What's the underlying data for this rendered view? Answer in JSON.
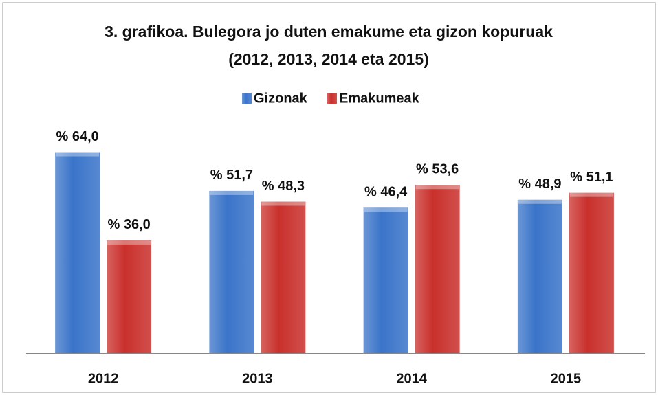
{
  "chart_data": {
    "type": "bar",
    "title": [
      "3. grafikoa. Bulegora jo duten emakume eta gizon kopuruak",
      "(2012, 2013,  2014 eta 2015)"
    ],
    "categories": [
      "2012",
      "2013",
      "2014",
      "2015"
    ],
    "series": [
      {
        "name": "Gizonak",
        "color": "#3a74c9",
        "values": [
          64.0,
          51.7,
          46.4,
          48.9
        ],
        "value_labels": [
          "% 64,0",
          "% 51,7",
          "% 46,4",
          "% 48,9"
        ]
      },
      {
        "name": "Emakumeak",
        "color": "#c9302c",
        "values": [
          36.0,
          48.3,
          53.6,
          51.1
        ],
        "value_labels": [
          "% 36,0",
          "% 48,3",
          "% 53,6",
          "% 51,1"
        ]
      }
    ],
    "ylim": [
      0,
      70
    ],
    "legend": "top"
  }
}
